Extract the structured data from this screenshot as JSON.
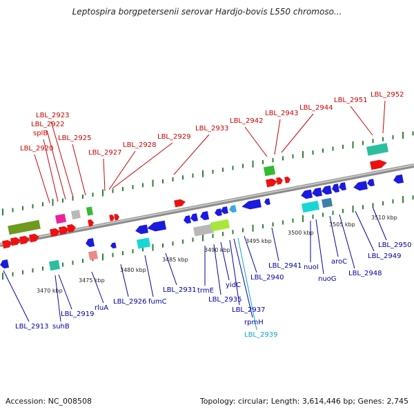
{
  "title": "Leptospira borgpetersenii serovar Hardjo-bovis L550 chromoso...",
  "footer": {
    "accession": "Accession: NC_008508",
    "topology": "Topology: circular; Length: 3,614,446 bp; Genes: 2,745"
  },
  "colors": {
    "backbone": "#9a9a9a",
    "tick": "#2e7d32",
    "red": "#ee1111",
    "blue": "#1a1ae0",
    "cyan": "#19d6d6",
    "lime": "#a8e83a",
    "olive": "#6e9a1f",
    "green": "#33bb33",
    "magenta": "#ee2299",
    "grey": "#b8b8b8",
    "steel": "#3d7fa6",
    "pink": "#f08888",
    "teal": "#2bbfa0",
    "light-blue": "#3aa8e8",
    "label-red": "#cc0000",
    "label-blue": "#0000aa",
    "label-cyan": "#00aacc"
  },
  "scale_labels": [
    "3470 kbp",
    "3475 kbp",
    "3480 kbp",
    "3485 kbp",
    "3490 kbp",
    "3495 kbp",
    "3500 kbp",
    "3505 kbp",
    "3510 kbp"
  ],
  "top_labels": [
    "LBL_2920",
    "splB",
    "LBL_2922",
    "LBL_2923",
    "LBL_2925",
    "LBL_2927",
    "LBL_2928",
    "LBL_2929",
    "LBL_2933",
    "LBL_2942",
    "LBL_2943",
    "LBL_2944",
    "LBL_2951",
    "LBL_2952"
  ],
  "bottom_labels": [
    "LBL_2913",
    "suhB",
    "LBL_2919",
    "rluA",
    "LBL_2926",
    "fumC",
    "LBL_2931",
    "trmE",
    "LBL_2935",
    "yidC",
    "LBL_2937",
    "rpmH",
    "LBL_2939",
    "LBL_2940",
    "LBL_2941",
    "nuoI",
    "nuoG",
    "aroC",
    "LBL_2948",
    "LBL_2949",
    "LBL_2950"
  ]
}
